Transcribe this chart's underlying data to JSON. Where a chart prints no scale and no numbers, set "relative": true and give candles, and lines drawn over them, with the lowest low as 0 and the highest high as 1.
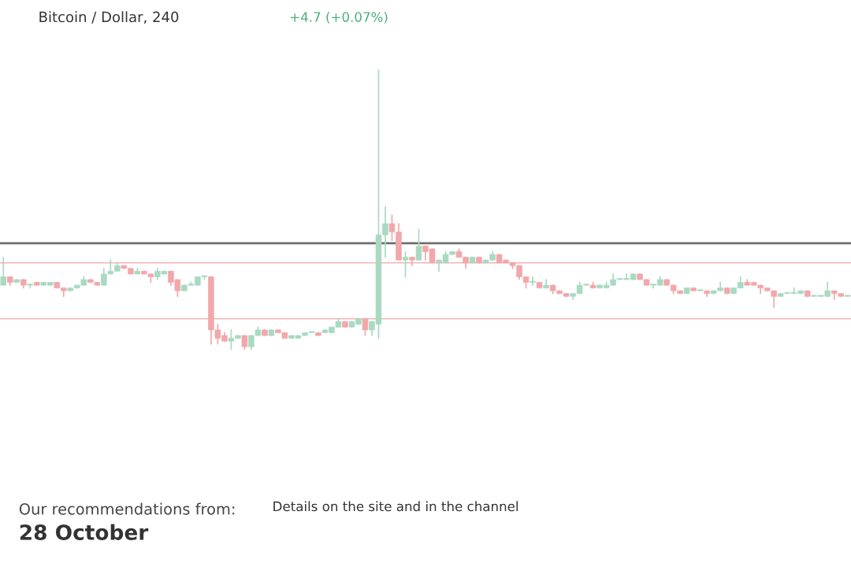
{
  "chart_data": {
    "type": "candlestick",
    "title": "Bitcoin / Dollar, 240",
    "subtitle": "+4.7 (+0.07%)",
    "relative": true,
    "tick_labels": false,
    "categories": [
      null,
      null,
      null,
      null,
      null,
      null,
      null,
      null,
      null,
      null,
      null,
      null,
      null,
      null,
      null,
      null,
      null,
      null,
      null,
      null,
      null,
      null,
      null,
      null,
      null,
      null,
      null,
      null,
      null,
      null,
      null,
      null,
      null,
      null,
      null,
      null,
      null,
      null,
      null,
      null,
      null,
      null,
      null,
      null,
      null,
      null,
      null,
      null,
      null,
      null,
      null,
      null,
      null,
      null,
      null,
      null,
      null,
      null,
      null,
      null,
      null,
      null,
      null,
      null,
      null,
      null,
      null,
      null,
      null,
      null,
      null,
      null,
      null,
      null,
      null,
      null,
      null,
      null,
      null,
      null,
      null,
      null,
      null,
      null,
      null,
      null,
      null,
      null,
      null,
      null,
      null,
      null,
      null,
      null,
      null,
      null,
      null,
      null,
      null,
      null,
      null,
      null,
      null,
      null,
      null,
      null,
      null,
      null,
      null,
      null,
      null,
      null,
      null,
      null,
      null,
      null,
      null,
      null,
      null,
      null,
      null,
      null,
      null,
      null,
      null,
      null,
      null
    ],
    "ohlc": [
      [
        0.23,
        0.33,
        0.23,
        0.26
      ],
      [
        0.26,
        0.26,
        0.23,
        0.24
      ],
      [
        0.24,
        0.25,
        0.24,
        0.25
      ],
      [
        0.25,
        0.25,
        0.22,
        0.23
      ],
      [
        0.23,
        0.23,
        0.22,
        0.23
      ],
      [
        0.24,
        0.24,
        0.23,
        0.23
      ],
      [
        0.23,
        0.24,
        0.23,
        0.24
      ],
      [
        0.23,
        0.24,
        0.23,
        0.24
      ],
      [
        0.24,
        0.24,
        0.22,
        0.22
      ],
      [
        0.22,
        0.22,
        0.19,
        0.21
      ],
      [
        0.21,
        0.22,
        0.21,
        0.22
      ],
      [
        0.22,
        0.23,
        0.22,
        0.23
      ],
      [
        0.23,
        0.26,
        0.23,
        0.25
      ],
      [
        0.25,
        0.25,
        0.24,
        0.24
      ],
      [
        0.24,
        0.24,
        0.23,
        0.23
      ],
      [
        0.23,
        0.29,
        0.23,
        0.27
      ],
      [
        0.27,
        0.32,
        0.27,
        0.28
      ],
      [
        0.28,
        0.31,
        0.28,
        0.3
      ],
      [
        0.3,
        0.3,
        0.29,
        0.29
      ],
      [
        0.29,
        0.29,
        0.27,
        0.27
      ],
      [
        0.27,
        0.29,
        0.27,
        0.28
      ],
      [
        0.28,
        0.28,
        0.27,
        0.27
      ],
      [
        0.27,
        0.27,
        0.24,
        0.26
      ],
      [
        0.26,
        0.29,
        0.25,
        0.28
      ],
      [
        0.27,
        0.28,
        0.27,
        0.28
      ],
      [
        0.28,
        0.28,
        0.23,
        0.24
      ],
      [
        0.25,
        0.25,
        0.19,
        0.21
      ],
      [
        0.21,
        0.23,
        0.21,
        0.23
      ],
      [
        0.23,
        0.24,
        0.23,
        0.23
      ],
      [
        0.23,
        0.26,
        0.23,
        0.26
      ],
      [
        0.26,
        0.26,
        0.25,
        0.26
      ],
      [
        0.26,
        0.26,
        0.02,
        0.07
      ],
      [
        0.07,
        0.09,
        0.02,
        0.04
      ],
      [
        0.05,
        0.06,
        0.03,
        0.03
      ],
      [
        0.03,
        0.07,
        0,
        0.04
      ],
      [
        0.04,
        0.05,
        0.04,
        0.05
      ],
      [
        0.05,
        0.05,
        0,
        0.01
      ],
      [
        0.01,
        0.05,
        0,
        0.05
      ],
      [
        0.05,
        0.08,
        0.05,
        0.07
      ],
      [
        0.07,
        0.07,
        0.05,
        0.05
      ],
      [
        0.05,
        0.07,
        0.05,
        0.07
      ],
      [
        0.07,
        0.07,
        0.06,
        0.06
      ],
      [
        0.06,
        0.06,
        0.04,
        0.04
      ],
      [
        0.04,
        0.05,
        0.04,
        0.05
      ],
      [
        0.04,
        0.05,
        0.04,
        0.05
      ],
      [
        0.05,
        0.06,
        0.05,
        0.06
      ],
      [
        0.06,
        0.06,
        0.06,
        0.06
      ],
      [
        0.06,
        0.06,
        0.05,
        0.05
      ],
      [
        0.06,
        0.07,
        0.06,
        0.07
      ],
      [
        0.06,
        0.08,
        0.06,
        0.08
      ],
      [
        0.08,
        0.11,
        0.08,
        0.1
      ],
      [
        0.1,
        0.1,
        0.08,
        0.08
      ],
      [
        0.08,
        0.1,
        0.08,
        0.1
      ],
      [
        0.09,
        0.11,
        0.09,
        0.11
      ],
      [
        0.11,
        0.11,
        0.05,
        0.07
      ],
      [
        0.07,
        0.1,
        0.05,
        0.1
      ],
      [
        0.09,
        1,
        0.04,
        0.41
      ],
      [
        0.41,
        0.51,
        0.33,
        0.45
      ],
      [
        0.45,
        0.48,
        0.39,
        0.42
      ],
      [
        0.42,
        0.45,
        0.32,
        0.32
      ],
      [
        0.32,
        0.35,
        0.26,
        0.33
      ],
      [
        0.33,
        0.33,
        0.3,
        0.32
      ],
      [
        0.32,
        0.43,
        0.32,
        0.37
      ],
      [
        0.37,
        0.37,
        0.32,
        0.35
      ],
      [
        0.36,
        0.36,
        0.31,
        0.31
      ],
      [
        0.31,
        0.32,
        0.28,
        0.32
      ],
      [
        0.31,
        0.35,
        0.31,
        0.34
      ],
      [
        0.34,
        0.35,
        0.34,
        0.35
      ],
      [
        0.35,
        0.36,
        0.33,
        0.33
      ],
      [
        0.33,
        0.33,
        0.29,
        0.31
      ],
      [
        0.31,
        0.33,
        0.31,
        0.33
      ],
      [
        0.33,
        0.33,
        0.31,
        0.31
      ],
      [
        0.31,
        0.32,
        0.31,
        0.32
      ],
      [
        0.32,
        0.35,
        0.32,
        0.34
      ],
      [
        0.34,
        0.34,
        0.31,
        0.31
      ],
      [
        0.32,
        0.32,
        0.31,
        0.31
      ],
      [
        0.31,
        0.31,
        0.29,
        0.3
      ],
      [
        0.3,
        0.3,
        0.25,
        0.26
      ],
      [
        0.26,
        0.26,
        0.22,
        0.24
      ],
      [
        0.24,
        0.26,
        0.23,
        0.24
      ],
      [
        0.24,
        0.24,
        0.22,
        0.22
      ],
      [
        0.22,
        0.25,
        0.22,
        0.23
      ],
      [
        0.23,
        0.23,
        0.2,
        0.21
      ],
      [
        0.21,
        0.21,
        0.2,
        0.2
      ],
      [
        0.2,
        0.2,
        0.19,
        0.19
      ],
      [
        0.19,
        0.2,
        0.18,
        0.2
      ],
      [
        0.2,
        0.24,
        0.2,
        0.23
      ],
      [
        0.23,
        0.23,
        0.23,
        0.23
      ],
      [
        0.23,
        0.24,
        0.22,
        0.22
      ],
      [
        0.22,
        0.23,
        0.22,
        0.23
      ],
      [
        0.22,
        0.24,
        0.22,
        0.23
      ],
      [
        0.23,
        0.27,
        0.23,
        0.25
      ],
      [
        0.25,
        0.25,
        0.25,
        0.25
      ],
      [
        0.25,
        0.27,
        0.25,
        0.25
      ],
      [
        0.25,
        0.27,
        0.25,
        0.27
      ],
      [
        0.27,
        0.27,
        0.25,
        0.25
      ],
      [
        0.25,
        0.25,
        0.23,
        0.23
      ],
      [
        0.23,
        0.23,
        0.22,
        0.23
      ],
      [
        0.23,
        0.26,
        0.23,
        0.25
      ],
      [
        0.25,
        0.25,
        0.23,
        0.23
      ],
      [
        0.23,
        0.23,
        0.2,
        0.21
      ],
      [
        0.21,
        0.21,
        0.2,
        0.2
      ],
      [
        0.2,
        0.22,
        0.2,
        0.22
      ],
      [
        0.22,
        0.22,
        0.21,
        0.21
      ],
      [
        0.21,
        0.21,
        0.21,
        0.21
      ],
      [
        0.21,
        0.21,
        0.19,
        0.2
      ],
      [
        0.2,
        0.21,
        0.2,
        0.21
      ],
      [
        0.21,
        0.24,
        0.21,
        0.22
      ],
      [
        0.22,
        0.22,
        0.2,
        0.2
      ],
      [
        0.2,
        0.22,
        0.2,
        0.22
      ],
      [
        0.22,
        0.26,
        0.22,
        0.24
      ],
      [
        0.24,
        0.25,
        0.23,
        0.23
      ],
      [
        0.24,
        0.24,
        0.23,
        0.23
      ],
      [
        0.23,
        0.23,
        0.2,
        0.22
      ],
      [
        0.22,
        0.22,
        0.21,
        0.21
      ],
      [
        0.21,
        0.21,
        0.15,
        0.19
      ],
      [
        0.19,
        0.2,
        0.19,
        0.2
      ],
      [
        0.2,
        0.2,
        0.2,
        0.2
      ],
      [
        0.2,
        0.22,
        0.2,
        0.2
      ],
      [
        0.2,
        0.21,
        0.2,
        0.21
      ],
      [
        0.21,
        0.21,
        0.19,
        0.19
      ],
      [
        0.19,
        0.19,
        0.19,
        0.19
      ],
      [
        0.19,
        0.19,
        0.19,
        0.19
      ],
      [
        0.19,
        0.24,
        0.19,
        0.21
      ],
      [
        0.21,
        0.21,
        0.18,
        0.2
      ],
      [
        0.2,
        0.2,
        0.19,
        0.19
      ],
      [
        0.19,
        0.19,
        0.19,
        0.19
      ]
    ],
    "ref_lines": [
      {
        "axis": "y",
        "value": 0.38,
        "color": "#6e6e6e"
      },
      {
        "axis": "y",
        "value": 0.31,
        "color": "#f4b4b4"
      },
      {
        "axis": "y",
        "value": 0.11,
        "color": "#f4b4b4"
      }
    ],
    "annotations": [
      "Our recommendations from:",
      "28 October",
      "Details on the site and in the channel"
    ]
  }
}
